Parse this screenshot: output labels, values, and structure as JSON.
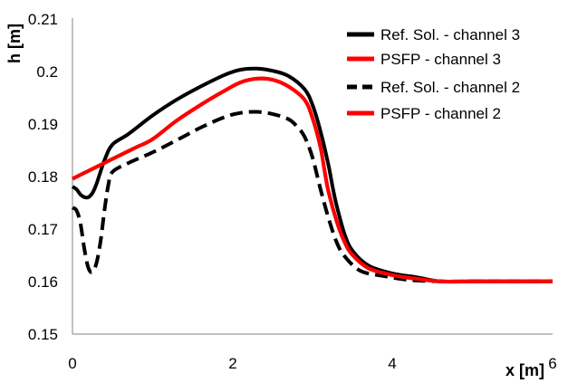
{
  "chart_data": {
    "type": "line",
    "xlabel": "x [m]",
    "ylabel": "h [m]",
    "xlim": [
      0,
      6
    ],
    "ylim": [
      0.15,
      0.21
    ],
    "x_ticks": [
      "0",
      "2",
      "4",
      "6"
    ],
    "y_ticks": [
      "0.15",
      "0.16",
      "0.17",
      "0.18",
      "0.19",
      "0.2",
      "0.21"
    ],
    "grid": false,
    "legend_position": "top-right",
    "series": [
      {
        "name": "Ref. Sol. - channel 3",
        "color": "#000000",
        "dash": "solid",
        "x": [
          0,
          0.05,
          0.1,
          0.15,
          0.2,
          0.25,
          0.3,
          0.4,
          0.5,
          0.7,
          1.0,
          1.3,
          1.6,
          1.9,
          2.1,
          2.3,
          2.5,
          2.7,
          2.9,
          3.0,
          3.1,
          3.2,
          3.25,
          3.3,
          3.4,
          3.5,
          3.7,
          4.0,
          4.3,
          4.6,
          5.0,
          5.5,
          6.0
        ],
        "values": [
          0.178,
          0.1775,
          0.1765,
          0.176,
          0.176,
          0.1768,
          0.1785,
          0.183,
          0.186,
          0.188,
          0.1915,
          0.1945,
          0.197,
          0.1992,
          0.2002,
          0.2004,
          0.2,
          0.199,
          0.1965,
          0.1935,
          0.1885,
          0.182,
          0.178,
          0.1745,
          0.169,
          0.1658,
          0.163,
          0.1615,
          0.1608,
          0.16,
          0.16,
          0.16,
          0.16
        ]
      },
      {
        "name": "PSFP - channel 3",
        "color": "#ff0000",
        "dash": "solid",
        "x": [
          0,
          0.2,
          0.4,
          0.6,
          0.8,
          1.0,
          1.3,
          1.6,
          1.9,
          2.1,
          2.3,
          2.5,
          2.7,
          2.9,
          3.0,
          3.1,
          3.15,
          3.2,
          3.3,
          3.4,
          3.5,
          3.7,
          4.0,
          4.3,
          4.6,
          5.0,
          5.5,
          6.0
        ],
        "values": [
          0.1795,
          0.181,
          0.1825,
          0.184,
          0.1855,
          0.187,
          0.1905,
          0.1935,
          0.1962,
          0.1978,
          0.1985,
          0.1983,
          0.197,
          0.1945,
          0.191,
          0.1855,
          0.181,
          0.177,
          0.1715,
          0.1675,
          0.165,
          0.1625,
          0.1612,
          0.1605,
          0.16,
          0.16,
          0.16,
          0.16
        ]
      },
      {
        "name": "Ref. Sol. - channel 2",
        "color": "#000000",
        "dash": "dashed",
        "x": [
          0,
          0.05,
          0.1,
          0.15,
          0.2,
          0.25,
          0.3,
          0.35,
          0.4,
          0.45,
          0.5,
          0.7,
          1.0,
          1.3,
          1.6,
          1.9,
          2.1,
          2.3,
          2.5,
          2.7,
          2.8,
          2.9,
          3.0,
          3.1,
          3.2,
          3.3,
          3.4,
          3.6,
          3.9,
          4.2,
          4.6,
          5.0,
          5.5,
          6.0
        ],
        "values": [
          0.174,
          0.1735,
          0.171,
          0.166,
          0.1625,
          0.1618,
          0.1635,
          0.1675,
          0.1735,
          0.1785,
          0.1808,
          0.1825,
          0.1845,
          0.1868,
          0.1892,
          0.1912,
          0.192,
          0.1922,
          0.1918,
          0.1908,
          0.1895,
          0.1875,
          0.1835,
          0.1775,
          0.172,
          0.1675,
          0.1648,
          0.162,
          0.161,
          0.1603,
          0.16,
          0.16,
          0.16,
          0.16
        ]
      },
      {
        "name": "PSFP - channel 2",
        "color": "#ff0000",
        "dash": "solid",
        "x": [
          0,
          0.2,
          0.4,
          0.6,
          0.8,
          1.0,
          1.3,
          1.6,
          1.9,
          2.1,
          2.3,
          2.5,
          2.7,
          2.9,
          3.0,
          3.1,
          3.15,
          3.2,
          3.3,
          3.4,
          3.5,
          3.7,
          4.0,
          4.3,
          4.6,
          5.0,
          5.5,
          6.0
        ],
        "values": [
          0.1795,
          0.181,
          0.1825,
          0.184,
          0.1855,
          0.187,
          0.1905,
          0.1935,
          0.1962,
          0.1978,
          0.1985,
          0.1983,
          0.197,
          0.1945,
          0.191,
          0.1855,
          0.181,
          0.177,
          0.1715,
          0.1675,
          0.165,
          0.1625,
          0.1612,
          0.1605,
          0.16,
          0.16,
          0.16,
          0.16
        ]
      }
    ]
  }
}
